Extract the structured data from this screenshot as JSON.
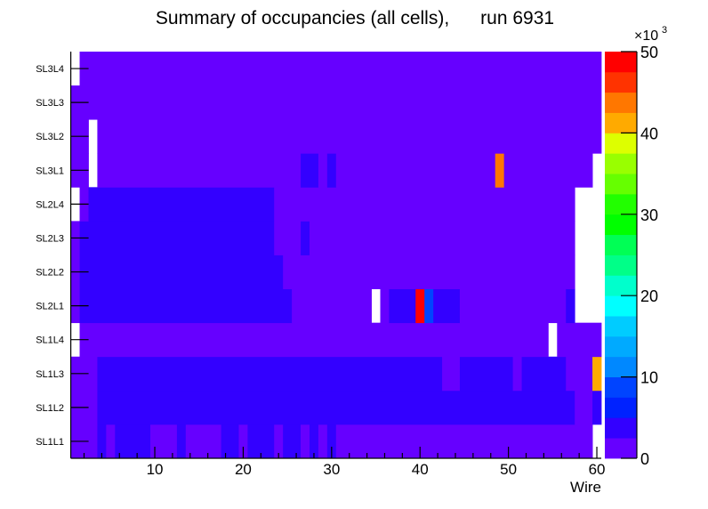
{
  "chart_data": {
    "type": "heatmap",
    "title": "Summary of occupancies (all cells),      run 6931",
    "xlabel": "Wire",
    "ylabel": "",
    "xlim": [
      0.5,
      60.5
    ],
    "x_ticks": [
      "10",
      "20",
      "30",
      "40",
      "50",
      "60"
    ],
    "x_tick_values": [
      10,
      20,
      30,
      40,
      50,
      60
    ],
    "y_categories": [
      "SL1L1",
      "SL1L2",
      "SL1L3",
      "SL1L4",
      "SL2L1",
      "SL2L2",
      "SL2L3",
      "SL2L4",
      "SL3L1",
      "SL3L2",
      "SL3L3",
      "SL3L4"
    ],
    "z_range": [
      0,
      50000
    ],
    "z_exponent_label": "×10",
    "z_exponent": "3",
    "z_ticks": [
      "0",
      "10",
      "20",
      "30",
      "40",
      "50"
    ],
    "z_tick_values": [
      0,
      10000,
      20000,
      30000,
      40000,
      50000
    ],
    "palette": [
      "#6600ff",
      "#3300ff",
      "#0022ff",
      "#0044ff",
      "#0088ff",
      "#00aaff",
      "#00ccff",
      "#00ffff",
      "#00ffcc",
      "#00ff88",
      "#00ff55",
      "#00ff00",
      "#22ff00",
      "#66ff00",
      "#99ff00",
      "#ddff00",
      "#ffaa00",
      "#ff7700",
      "#ff3300",
      "#ff0000"
    ],
    "empty_color": "#ffffff",
    "rows_runs_note": "each run = [first wire, last wire, occupancy]; wires not listed are empty",
    "rows": [
      {
        "label": "SL1L1",
        "runs": [
          [
            1,
            3,
            1000
          ],
          [
            4,
            4,
            4000
          ],
          [
            5,
            5,
            1000
          ],
          [
            6,
            9,
            4000
          ],
          [
            10,
            12,
            1000
          ],
          [
            13,
            13,
            4000
          ],
          [
            14,
            17,
            1000
          ],
          [
            18,
            19,
            4000
          ],
          [
            20,
            20,
            1000
          ],
          [
            21,
            23,
            4000
          ],
          [
            24,
            24,
            1000
          ],
          [
            25,
            26,
            4000
          ],
          [
            27,
            27,
            1000
          ],
          [
            28,
            28,
            4000
          ],
          [
            29,
            29,
            1000
          ],
          [
            30,
            30,
            4000
          ],
          [
            31,
            59,
            1000
          ]
        ]
      },
      {
        "label": "SL1L2",
        "runs": [
          [
            1,
            3,
            1000
          ],
          [
            4,
            57,
            4000
          ],
          [
            58,
            59,
            1000
          ],
          [
            60,
            60,
            4000
          ]
        ]
      },
      {
        "label": "SL1L3",
        "runs": [
          [
            1,
            3,
            1000
          ],
          [
            4,
            42,
            4000
          ],
          [
            43,
            44,
            1000
          ],
          [
            45,
            50,
            4000
          ],
          [
            51,
            51,
            1000
          ],
          [
            52,
            56,
            4000
          ],
          [
            57,
            59,
            1000
          ],
          [
            60,
            60,
            41000
          ]
        ]
      },
      {
        "label": "SL1L4",
        "runs": [
          [
            2,
            54,
            1000
          ],
          [
            56,
            60,
            1000
          ]
        ]
      },
      {
        "label": "SL2L1",
        "runs": [
          [
            1,
            1,
            1000
          ],
          [
            2,
            25,
            4000
          ],
          [
            26,
            34,
            1000
          ],
          [
            36,
            36,
            1000
          ],
          [
            37,
            39,
            4000
          ],
          [
            40,
            40,
            48500
          ],
          [
            41,
            41,
            8000
          ],
          [
            42,
            44,
            4000
          ],
          [
            45,
            56,
            1000
          ],
          [
            57,
            57,
            4000
          ]
        ]
      },
      {
        "label": "SL2L2",
        "runs": [
          [
            1,
            1,
            1000
          ],
          [
            2,
            24,
            4000
          ],
          [
            25,
            57,
            1000
          ]
        ]
      },
      {
        "label": "SL2L3",
        "runs": [
          [
            1,
            1,
            1000
          ],
          [
            2,
            23,
            4000
          ],
          [
            24,
            26,
            1000
          ],
          [
            27,
            27,
            4000
          ],
          [
            28,
            57,
            1000
          ]
        ]
      },
      {
        "label": "SL2L4",
        "runs": [
          [
            2,
            2,
            1000
          ],
          [
            3,
            23,
            4000
          ],
          [
            24,
            57,
            1000
          ]
        ]
      },
      {
        "label": "SL3L1",
        "runs": [
          [
            1,
            2,
            1000
          ],
          [
            4,
            26,
            1000
          ],
          [
            27,
            28,
            4000
          ],
          [
            29,
            29,
            1000
          ],
          [
            30,
            30,
            4000
          ],
          [
            31,
            48,
            1000
          ],
          [
            49,
            49,
            43000
          ],
          [
            50,
            59,
            1000
          ]
        ]
      },
      {
        "label": "SL3L2",
        "runs": [
          [
            1,
            2,
            1000
          ],
          [
            4,
            60,
            1000
          ]
        ]
      },
      {
        "label": "SL3L3",
        "runs": [
          [
            1,
            60,
            1000
          ]
        ]
      },
      {
        "label": "SL3L4",
        "runs": [
          [
            2,
            60,
            1000
          ]
        ]
      }
    ]
  }
}
